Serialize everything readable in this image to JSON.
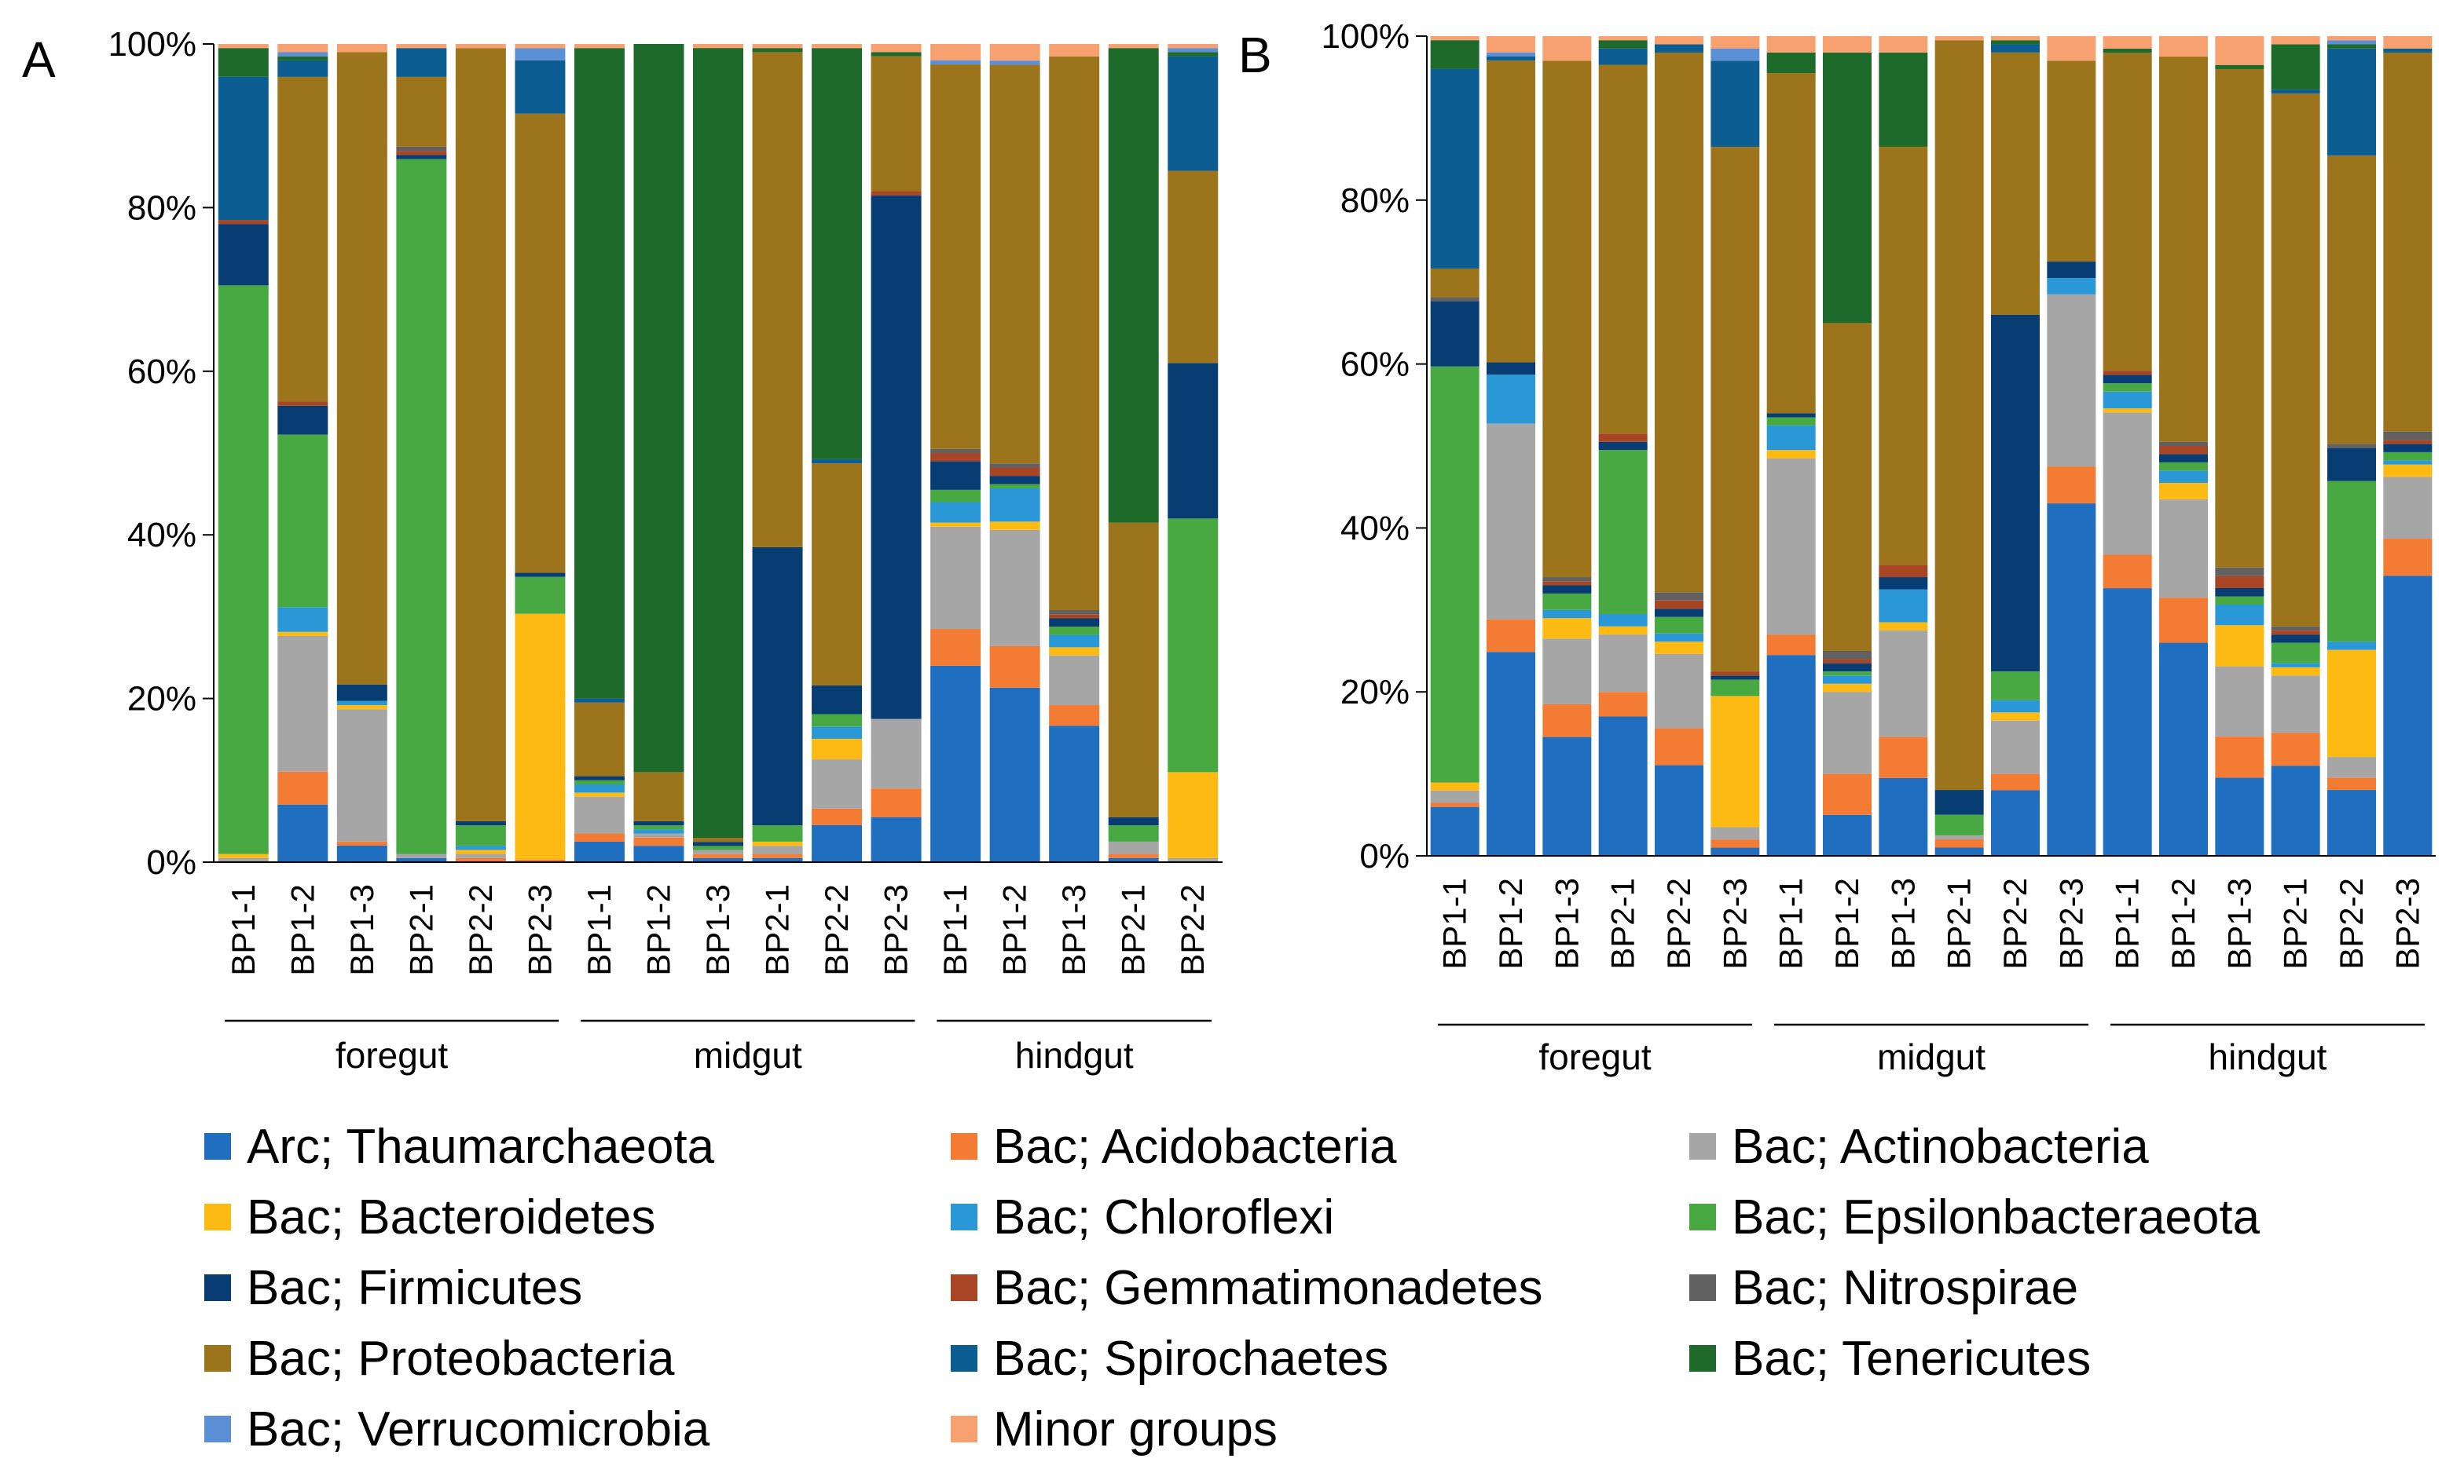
{
  "chart_data": {
    "type": "bar",
    "stacked": true,
    "title": "",
    "legend": [
      {
        "name": "Arc; Thaumarchaeota",
        "color": "#1F6EBF"
      },
      {
        "name": "Bac; Acidobacteria",
        "color": "#F47B33"
      },
      {
        "name": "Bac; Actinobacteria",
        "color": "#A6A6A6"
      },
      {
        "name": "Bac; Bacteroidetes",
        "color": "#FDBA12"
      },
      {
        "name": "Bac; Chloroflexi",
        "color": "#2A98D6"
      },
      {
        "name": "Bac; Epsilonbacteraeota",
        "color": "#48A943"
      },
      {
        "name": "Bac; Firmicutes",
        "color": "#083D74"
      },
      {
        "name": "Bac; Gemmatimonadetes",
        "color": "#A84525"
      },
      {
        "name": "Bac; Nitrospirae",
        "color": "#616161"
      },
      {
        "name": "Bac; Proteobacteria",
        "color": "#9C741B"
      },
      {
        "name": "Bac; Spirochaetes",
        "color": "#0C5E92"
      },
      {
        "name": "Bac; Tenericutes",
        "color": "#1D6A2B"
      },
      {
        "name": "Bac; Verrucomicrobia",
        "color": "#5B8FD6"
      },
      {
        "name": "Minor groups",
        "color": "#F7A170"
      }
    ],
    "panels": [
      {
        "label": "A",
        "ylim": [
          0,
          100
        ],
        "yticks": [
          "0%",
          "20%",
          "40%",
          "60%",
          "80%",
          "100%"
        ],
        "groups": [
          {
            "name": "foregut",
            "bars": [
              0,
              5
            ]
          },
          {
            "name": "midgut",
            "bars": [
              6,
              11
            ]
          },
          {
            "name": "hindgut",
            "bars": [
              12,
              16
            ]
          }
        ],
        "categories": [
          "BP1-1",
          "BP1-2",
          "BP1-3",
          "BP2-1",
          "BP2-2",
          "BP2-3",
          "BP1-1",
          "BP1-2",
          "BP1-3",
          "BP2-1",
          "BP2-2",
          "BP2-3",
          "BP1-1",
          "BP1-2",
          "BP1-3",
          "BP2-1",
          "BP2-2"
        ],
        "series": [
          {
            "name": "Arc; Thaumarchaeota",
            "values": [
              0,
              7,
              2,
              0.5,
              0,
              0,
              2.5,
              2,
              0.5,
              0.5,
              4.5,
              5.5,
              24,
              21,
              16.5,
              0.5,
              0
            ]
          },
          {
            "name": "Bac; Acidobacteria",
            "values": [
              0,
              4,
              0.5,
              0,
              0.5,
              0.3,
              1,
              1,
              0.5,
              0.5,
              2,
              3.5,
              4.5,
              5,
              2.5,
              0.5,
              0
            ]
          },
          {
            "name": "Bac; Actinobacteria",
            "values": [
              0.5,
              16.5,
              16,
              0.5,
              0.5,
              0,
              4.5,
              0.5,
              0.5,
              1,
              6,
              8.5,
              12.5,
              14,
              6,
              1.5,
              0.5
            ]
          },
          {
            "name": "Bac; Bacteroidetes",
            "values": [
              0.5,
              0.5,
              0.5,
              0,
              0.5,
              30,
              0.5,
              0,
              0,
              0.5,
              2.5,
              0,
              0.5,
              1,
              1,
              0,
              10.5
            ]
          },
          {
            "name": "Bac; Chloroflexi",
            "values": [
              0,
              3,
              0.5,
              0,
              0.5,
              0,
              1,
              0.5,
              0,
              0,
              1.5,
              0,
              2.5,
              4,
              1.5,
              0,
              0
            ]
          },
          {
            "name": "Bac; Epsilonbacteraeota",
            "values": [
              69.5,
              21,
              0,
              84.5,
              2.5,
              4.5,
              0.5,
              0.5,
              0.5,
              2,
              1.5,
              0,
              1.5,
              0.5,
              1,
              2,
              31
            ]
          },
          {
            "name": "Bac; Firmicutes",
            "values": [
              7.5,
              3.5,
              2,
              0.5,
              0.5,
              0.5,
              0.5,
              0.5,
              0.5,
              34,
              3.5,
              64,
              3.5,
              1,
              1,
              1,
              19
            ]
          },
          {
            "name": "Bac; Gemmatimonadetes",
            "values": [
              0.5,
              0.5,
              0,
              0.5,
              0,
              0,
              0,
              0,
              0,
              0,
              0,
              0.5,
              1,
              1,
              0.5,
              0,
              0
            ]
          },
          {
            "name": "Bac; Nitrospirae",
            "values": [
              0,
              0,
              0,
              0.5,
              0,
              0,
              0,
              0,
              0,
              0,
              0,
              0,
              0.5,
              0.5,
              0.5,
              0,
              0
            ]
          },
          {
            "name": "Bac; Proteobacteria",
            "values": [
              0,
              39.5,
              76.5,
              8.5,
              94.5,
              56,
              9,
              6,
              0.5,
              60.5,
              27,
              16.5,
              47,
              48,
              67,
              36,
              23.5
            ]
          },
          {
            "name": "Bac; Spirochaetes",
            "values": [
              17.5,
              2,
              0,
              3.5,
              0,
              6.5,
              0.5,
              0,
              0,
              0,
              0.5,
              0,
              0,
              0,
              0,
              0,
              14
            ]
          },
          {
            "name": "Bac; Tenericutes",
            "values": [
              3.5,
              0.5,
              0,
              0,
              0,
              0,
              79.5,
              89,
              97.5,
              0.5,
              50,
              0.5,
              0,
              0,
              0,
              58,
              0.5
            ]
          },
          {
            "name": "Bac; Verrucomicrobia",
            "values": [
              0,
              0.5,
              0,
              0,
              0,
              1.5,
              0,
              0,
              0,
              0,
              0,
              0,
              0.5,
              0.5,
              0,
              0,
              0.5
            ]
          },
          {
            "name": "Minor groups",
            "values": [
              0.5,
              1,
              1,
              0.5,
              0.5,
              0.5,
              0.5,
              0,
              0.5,
              0.5,
              0.5,
              1,
              2,
              2,
              1.5,
              0.5,
              0.5
            ]
          }
        ]
      },
      {
        "label": "B",
        "ylim": [
          0,
          100
        ],
        "yticks": [
          "0%",
          "20%",
          "40%",
          "60%",
          "80%",
          "100%"
        ],
        "groups": [
          {
            "name": "foregut",
            "bars": [
              0,
              5
            ]
          },
          {
            "name": "midgut",
            "bars": [
              6,
              11
            ]
          },
          {
            "name": "hindgut",
            "bars": [
              12,
              17
            ]
          }
        ],
        "categories": [
          "BP1-1",
          "BP1-2",
          "BP1-3",
          "BP2-1",
          "BP2-2",
          "BP2-3",
          "BP1-1",
          "BP1-2",
          "BP1-3",
          "BP2-1",
          "BP2-2",
          "BP2-3",
          "BP1-1",
          "BP1-2",
          "BP1-3",
          "BP2-1",
          "BP2-2",
          "BP2-3"
        ],
        "series": [
          {
            "name": "Arc; Thaumarchaeota",
            "values": [
              6,
              25,
              14.5,
              17,
              11,
              1,
              24.5,
              5,
              9.5,
              1,
              8,
              43,
              32,
              26,
              9.5,
              11,
              8,
              34
            ]
          },
          {
            "name": "Bac; Acidobacteria",
            "values": [
              0.5,
              4,
              4,
              3,
              4.5,
              1,
              2.5,
              5,
              5,
              1,
              2,
              4.5,
              4,
              5.5,
              5,
              4,
              1.5,
              4.5
            ]
          },
          {
            "name": "Bac; Actinobacteria",
            "values": [
              1.5,
              24,
              8,
              7,
              9,
              1.5,
              21.5,
              10,
              13,
              0.5,
              6.5,
              21,
              17,
              12,
              8.5,
              7,
              2.5,
              7.5
            ]
          },
          {
            "name": "Bac; Bacteroidetes",
            "values": [
              1,
              0,
              2.5,
              1,
              1.5,
              16,
              1,
              1,
              1,
              0,
              1,
              0,
              0.5,
              2,
              5,
              1,
              13,
              1.5
            ]
          },
          {
            "name": "Bac; Chloroflexi",
            "values": [
              0,
              6,
              1,
              1.5,
              1,
              0,
              3,
              1,
              4,
              0,
              1.5,
              2,
              2,
              1.5,
              2.5,
              0.5,
              1,
              0.5
            ]
          },
          {
            "name": "Bac; Epsilonbacteraeota",
            "values": [
              51,
              0,
              2,
              20,
              2,
              2,
              1,
              0.5,
              0,
              2.5,
              3.5,
              0,
              1,
              1,
              1,
              2.5,
              19.5,
              1
            ]
          },
          {
            "name": "Bac; Firmicutes",
            "values": [
              8,
              1.5,
              1,
              1,
              1,
              0.5,
              0.5,
              1,
              1.5,
              3,
              43.5,
              2,
              1,
              1,
              1,
              1,
              4,
              1
            ]
          },
          {
            "name": "Bac; Gemmatimonadetes",
            "values": [
              0,
              0,
              0.5,
              1,
              1,
              0.5,
              0,
              0.5,
              1.5,
              0,
              0,
              0,
              0.5,
              1,
              1.5,
              0.5,
              0,
              0.5
            ]
          },
          {
            "name": "Bac; Nitrospirae",
            "values": [
              0.5,
              0,
              0.5,
              0,
              1,
              0,
              0,
              1,
              0,
              0,
              0,
              0,
              0,
              0.5,
              1,
              0.5,
              0.5,
              1
            ]
          },
          {
            "name": "Bac; Proteobacteria",
            "values": [
              3.5,
              37,
              63,
              45,
              65.5,
              64,
              41.5,
              40,
              51,
              91,
              32,
              24.5,
              38,
              47,
              60.5,
              65,
              35,
              46
            ]
          },
          {
            "name": "Bac; Spirochaetes",
            "values": [
              24.5,
              0.5,
              0,
              2,
              1,
              10.5,
              0,
              0,
              0,
              0,
              1,
              0,
              0,
              0,
              0,
              0.5,
              13,
              0.5
            ]
          },
          {
            "name": "Bac; Tenericutes",
            "values": [
              3.5,
              0,
              0,
              1,
              0,
              0,
              2.5,
              33,
              11.5,
              0,
              0.5,
              0,
              0.5,
              0,
              0.5,
              5.5,
              0.5,
              0
            ]
          },
          {
            "name": "Bac; Verrucomicrobia",
            "values": [
              0,
              0.5,
              0,
              0,
              0,
              1.5,
              0,
              0,
              0,
              0,
              0,
              0,
              0,
              0,
              0,
              0,
              0.5,
              0
            ]
          },
          {
            "name": "Minor groups",
            "values": [
              0.5,
              2,
              3,
              0.5,
              1,
              1.5,
              2,
              2,
              2,
              0.5,
              0.5,
              3,
              1.5,
              2.5,
              3.5,
              1,
              0.5,
              1.5
            ]
          }
        ]
      }
    ]
  }
}
